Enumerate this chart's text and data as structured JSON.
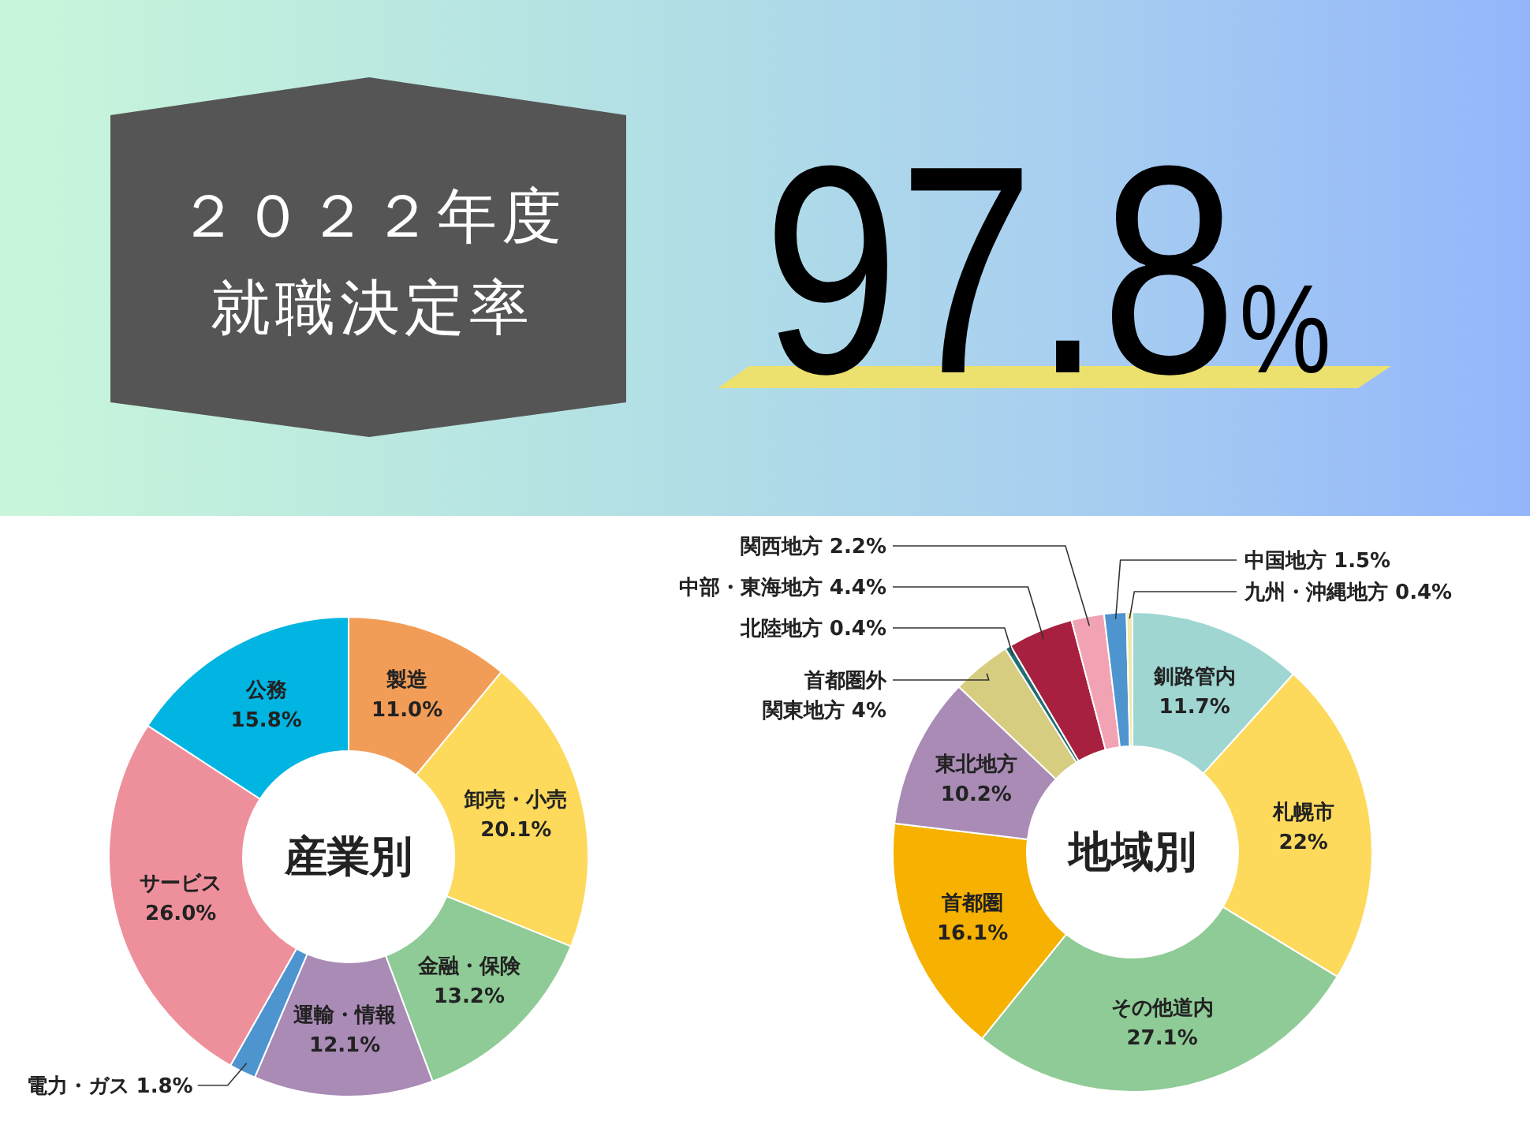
{
  "chart_data": [
    {
      "type": "other",
      "title": "２０２２年度",
      "subtitle": "就職決定率",
      "annotations": [
        "97.8%"
      ]
    },
    {
      "type": "donut",
      "title": "産業別",
      "categories": [
        "製造",
        "卸売・小売",
        "金融・保険",
        "運輸・情報",
        "電力・ガス",
        "サービス",
        "公務"
      ],
      "values": [
        11.0,
        20.1,
        13.2,
        12.1,
        1.8,
        26.0,
        15.8
      ],
      "value_labels": [
        "11.0%",
        "20.1%",
        "13.2%",
        "12.1%",
        "1.8%",
        "26.0%",
        "15.8%"
      ],
      "colors": [
        "#f29d57",
        "#fdd95c",
        "#8fcb96",
        "#a98bb6",
        "#4e95d0",
        "#ee909c",
        "#00b5e2"
      ]
    },
    {
      "type": "donut",
      "title": "地域別",
      "categories": [
        "釧路管内",
        "札幌市",
        "その他道内",
        "首都圏",
        "東北地方",
        "首都圏外関東地方",
        "北陸地方",
        "中部・東海地方",
        "関西地方",
        "中国地方",
        "九州・沖縄地方"
      ],
      "values": [
        11.7,
        22,
        27.1,
        16.1,
        10.2,
        4,
        0.4,
        4.4,
        2.2,
        1.5,
        0.4
      ],
      "value_labels": [
        "11.7%",
        "22%",
        "27.1%",
        "16.1%",
        "10.2%",
        "4%",
        "0.4%",
        "4.4%",
        "2.2%",
        "1.5%",
        "0.4%"
      ],
      "colors": [
        "#9fd6d2",
        "#fdd95c",
        "#8fcb96",
        "#f6b101",
        "#a98bb6",
        "#d7cd80",
        "#1f6e74",
        "#a8203f",
        "#f2a3b3",
        "#4e95d0",
        "#eee9a8"
      ]
    }
  ]
}
